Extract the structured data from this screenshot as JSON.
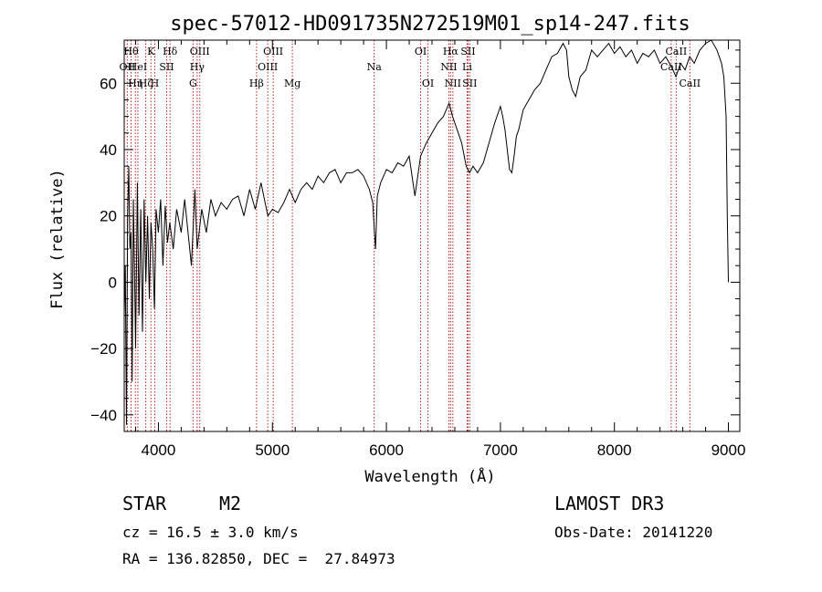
{
  "chart_data": {
    "type": "line",
    "title": "spec-57012-HD091735N272519M01_sp14-247.fits",
    "xlabel": "Wavelength (Å)",
    "ylabel": "Flux (relative)",
    "xlim": [
      3700,
      9100
    ],
    "ylim": [
      -45,
      73
    ],
    "xticks": [
      4000,
      5000,
      6000,
      7000,
      8000,
      9000
    ],
    "yticks": [
      -40,
      -20,
      0,
      20,
      40,
      60
    ],
    "xtick_labels": [
      "4000",
      "5000",
      "6000",
      "7000",
      "8000",
      "9000"
    ],
    "ytick_labels": [
      "−40",
      "−20",
      "0",
      "20",
      "40",
      "60"
    ],
    "series": [
      {
        "name": "flux",
        "x": [
          3700,
          3710,
          3720,
          3730,
          3740,
          3750,
          3760,
          3770,
          3780,
          3790,
          3800,
          3815,
          3830,
          3845,
          3860,
          3875,
          3890,
          3905,
          3920,
          3935,
          3950,
          3965,
          3980,
          4000,
          4020,
          4040,
          4060,
          4080,
          4100,
          4130,
          4160,
          4200,
          4230,
          4260,
          4290,
          4320,
          4340,
          4380,
          4420,
          4460,
          4500,
          4550,
          4600,
          4650,
          4700,
          4750,
          4800,
          4850,
          4900,
          4930,
          4960,
          5000,
          5050,
          5100,
          5150,
          5200,
          5250,
          5300,
          5350,
          5400,
          5450,
          5500,
          5550,
          5600,
          5650,
          5700,
          5750,
          5800,
          5850,
          5880,
          5895,
          5905,
          5920,
          5950,
          6000,
          6050,
          6100,
          6150,
          6200,
          6250,
          6300,
          6350,
          6400,
          6450,
          6500,
          6550,
          6565,
          6580,
          6620,
          6660,
          6700,
          6730,
          6760,
          6800,
          6850,
          6900,
          6950,
          7000,
          7020,
          7040,
          7060,
          7080,
          7100,
          7120,
          7140,
          7160,
          7200,
          7250,
          7300,
          7350,
          7400,
          7450,
          7500,
          7550,
          7580,
          7600,
          7630,
          7660,
          7700,
          7750,
          7800,
          7850,
          7900,
          7950,
          8000,
          8050,
          8100,
          8150,
          8200,
          8250,
          8300,
          8350,
          8400,
          8450,
          8500,
          8540,
          8580,
          8620,
          8660,
          8700,
          8750,
          8800,
          8850,
          8900,
          8940,
          8960,
          8980,
          8990,
          9000
        ],
        "values": [
          -10,
          5,
          -43,
          20,
          35,
          10,
          15,
          -30,
          25,
          5,
          -20,
          30,
          -10,
          22,
          -15,
          25,
          0,
          20,
          -5,
          18,
          10,
          -8,
          22,
          15,
          25,
          5,
          23,
          12,
          18,
          10,
          22,
          15,
          25,
          15,
          5,
          28,
          10,
          22,
          15,
          25,
          20,
          24,
          22,
          25,
          26,
          20,
          28,
          22,
          30,
          25,
          20,
          22,
          21,
          24,
          28,
          24,
          28,
          30,
          28,
          32,
          30,
          33,
          34,
          30,
          33,
          33,
          34,
          32,
          28,
          24,
          15,
          10,
          26,
          30,
          34,
          33,
          36,
          35,
          38,
          26,
          38,
          42,
          45,
          48,
          50,
          54,
          52,
          50,
          46,
          42,
          35,
          33,
          35,
          33,
          36,
          42,
          48,
          53,
          50,
          46,
          40,
          34,
          33,
          38,
          44,
          46,
          52,
          55,
          58,
          60,
          64,
          68,
          69,
          72,
          70,
          62,
          58,
          56,
          62,
          64,
          70,
          68,
          70,
          72,
          69,
          71,
          68,
          70,
          66,
          69,
          68,
          70,
          66,
          68,
          65,
          62,
          66,
          64,
          68,
          66,
          70,
          72,
          73,
          70,
          66,
          62,
          50,
          20,
          0
        ]
      }
    ],
    "line_labels": [
      {
        "wl": 3727,
        "label": "OII",
        "row": 2
      },
      {
        "wl": 3760,
        "label": "Hθ",
        "row": 1
      },
      {
        "wl": 3798,
        "label": "Hη",
        "row": 3
      },
      {
        "wl": 3820,
        "label": "HeI",
        "row": 2
      },
      {
        "wl": 3889,
        "label": "Hζ",
        "row": 3
      },
      {
        "wl": 3934,
        "label": "K",
        "row": 1
      },
      {
        "wl": 3968,
        "label": "H",
        "row": 3
      },
      {
        "wl": 4072,
        "label": "SII",
        "row": 2
      },
      {
        "wl": 4102,
        "label": "Hδ",
        "row": 1
      },
      {
        "wl": 4304,
        "label": "G",
        "row": 3
      },
      {
        "wl": 4340,
        "label": "Hγ",
        "row": 2
      },
      {
        "wl": 4363,
        "label": "OIII",
        "row": 1
      },
      {
        "wl": 4861,
        "label": "Hβ",
        "row": 3
      },
      {
        "wl": 4959,
        "label": "OIII",
        "row": 2
      },
      {
        "wl": 5007,
        "label": "OIII",
        "row": 1
      },
      {
        "wl": 5175,
        "label": "Mg",
        "row": 3
      },
      {
        "wl": 5893,
        "label": "Na",
        "row": 2
      },
      {
        "wl": 6300,
        "label": "OI",
        "row": 1
      },
      {
        "wl": 6364,
        "label": "OI",
        "row": 3
      },
      {
        "wl": 6548,
        "label": "NII",
        "row": 2
      },
      {
        "wl": 6563,
        "label": "Hα",
        "row": 1
      },
      {
        "wl": 6583,
        "label": "NII",
        "row": 3
      },
      {
        "wl": 6708,
        "label": "Li",
        "row": 2
      },
      {
        "wl": 6716,
        "label": "SII",
        "row": 1
      },
      {
        "wl": 6731,
        "label": "SII",
        "row": 3
      },
      {
        "wl": 8498,
        "label": "CaII",
        "row": 2
      },
      {
        "wl": 8542,
        "label": "CaII",
        "row": 1
      },
      {
        "wl": 8662,
        "label": "CaII",
        "row": 3
      }
    ]
  },
  "info": {
    "class": "STAR",
    "subclass": "M2",
    "survey": "LAMOST DR3",
    "cz": "cz = 16.5 ± 3.0 km/s",
    "obsdate": "Obs-Date: 20141220",
    "radec": "RA = 136.82850, DEC =  27.84973"
  },
  "colors": {
    "line_marker": "#b22222",
    "spectrum": "#000000"
  }
}
